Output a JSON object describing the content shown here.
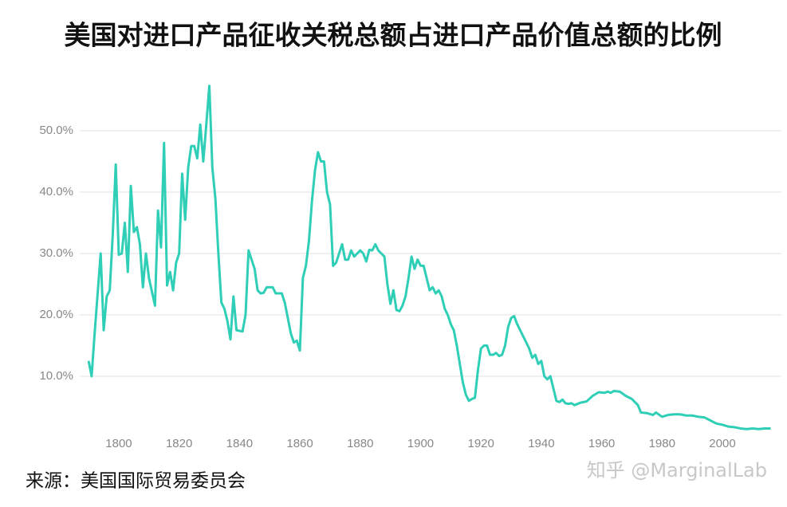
{
  "chart_data": {
    "type": "line",
    "title": "美国对进口产品征收关税总额占进口产品价值总额的比例",
    "source": "来源：美国国际贸易委员会",
    "watermark": "知乎 @MarginalLab",
    "x": [
      1790,
      1791,
      1792,
      1794,
      1795,
      1796,
      1797,
      1798,
      1799,
      1800,
      1801,
      1802,
      1803,
      1804,
      1805,
      1806,
      1807,
      1808,
      1809,
      1810,
      1812,
      1813,
      1814,
      1815,
      1816,
      1817,
      1818,
      1819,
      1820,
      1821,
      1822,
      1823,
      1824,
      1825,
      1826,
      1827,
      1828,
      1829,
      1830,
      1831,
      1832,
      1833,
      1834,
      1835,
      1836,
      1837,
      1838,
      1839,
      1841,
      1842,
      1843,
      1844,
      1845,
      1846,
      1847,
      1848,
      1849,
      1851,
      1852,
      1854,
      1855,
      1856,
      1857,
      1858,
      1859,
      1860,
      1861,
      1862,
      1863,
      1864,
      1865,
      1866,
      1867,
      1868,
      1869,
      1870,
      1871,
      1872,
      1873,
      1874,
      1875,
      1876,
      1877,
      1878,
      1879,
      1880,
      1881,
      1882,
      1883,
      1884,
      1885,
      1886,
      1887,
      1888,
      1889,
      1890,
      1891,
      1892,
      1893,
      1894,
      1895,
      1896,
      1897,
      1898,
      1899,
      1900,
      1901,
      1902,
      1903,
      1904,
      1905,
      1906,
      1907,
      1908,
      1909,
      1910,
      1911,
      1912,
      1913,
      1914,
      1915,
      1916,
      1917,
      1918,
      1919,
      1920,
      1921,
      1922,
      1923,
      1924,
      1925,
      1926,
      1927,
      1928,
      1929,
      1930,
      1931,
      1932,
      1933,
      1934,
      1935,
      1936,
      1937,
      1938,
      1939,
      1940,
      1941,
      1942,
      1943,
      1944,
      1945,
      1946,
      1947,
      1948,
      1949,
      1950,
      1951,
      1953,
      1955,
      1957,
      1959,
      1961,
      1962,
      1963,
      1964,
      1966,
      1968,
      1970,
      1972,
      1973,
      1975,
      1977,
      1978,
      1980,
      1982,
      1984,
      1986,
      1988,
      1990,
      1992,
      1994,
      1996,
      1998,
      2000,
      2002,
      2004,
      2006,
      2008,
      2010,
      2012,
      2014,
      2016
    ],
    "series": [
      {
        "color": "#2fceb6",
        "values": [
          12.5,
          10,
          17,
          30,
          17.5,
          23,
          24,
          33,
          44.5,
          29.8,
          30,
          35,
          27,
          41,
          33.5,
          34.3,
          31.5,
          24.5,
          30,
          26,
          21.5,
          37,
          31,
          48,
          24.8,
          27,
          24,
          28.5,
          30,
          43,
          35.5,
          44,
          47.5,
          47.5,
          45.5,
          51,
          45,
          51,
          57.3,
          44,
          39,
          30,
          22,
          21,
          19,
          16,
          23,
          17.5,
          17.3,
          20,
          30.5,
          29,
          27.5,
          24,
          23.5,
          23.6,
          24.5,
          24.5,
          23.5,
          23.5,
          22,
          19.5,
          17,
          15.5,
          15.8,
          14.2,
          26,
          28,
          32,
          38.5,
          43.5,
          46.5,
          45,
          45,
          40,
          38,
          28,
          28.5,
          30,
          31.5,
          29,
          29,
          30.5,
          29.5,
          30,
          30.5,
          30,
          28.7,
          30.6,
          30.5,
          31.5,
          30.5,
          30,
          29.5,
          25,
          21.8,
          24,
          20.8,
          20.6,
          21.5,
          23,
          26,
          29.5,
          27.5,
          29,
          28,
          28,
          26,
          24,
          24.5,
          23.5,
          24,
          23,
          21,
          20,
          18.5,
          17.5,
          15,
          12,
          9,
          7,
          6,
          6.3,
          6.5,
          11,
          14.5,
          15,
          15,
          13.5,
          13.5,
          13.8,
          13.3,
          13.5,
          15,
          18,
          19.5,
          19.8,
          18.5,
          17.5,
          16.5,
          15.5,
          14.5,
          13,
          13.5,
          12,
          12.5,
          10,
          9.5,
          10,
          8,
          6,
          5.8,
          6.2,
          5.6,
          5.5,
          5.6,
          5.3,
          5.7,
          5.9,
          6.8,
          7.4,
          7.3,
          7.5,
          7.3,
          7.6,
          7.5,
          6.8,
          6.3,
          5.3,
          4.1,
          4,
          3.7,
          4.1,
          3.4,
          3.7,
          3.8,
          3.8,
          3.6,
          3.6,
          3.4,
          3.3,
          2.8,
          2.3,
          2.1,
          1.8,
          1.7,
          1.5,
          1.4,
          1.5,
          1.4,
          1.5,
          1.5
        ]
      }
    ],
    "xlim": [
      1784,
      2020
    ],
    "xticks": [
      1800,
      1820,
      1840,
      1860,
      1880,
      1900,
      1920,
      1940,
      1960,
      1980,
      2000
    ],
    "ylim": [
      0,
      60
    ],
    "yticks": [
      {
        "value": 10,
        "label": "10.0%"
      },
      {
        "value": 20,
        "label": "20.0%"
      },
      {
        "value": 30,
        "label": "30.0%"
      },
      {
        "value": 40,
        "label": "40.0%"
      },
      {
        "value": 50,
        "label": "50.0%"
      }
    ],
    "grid": true
  }
}
